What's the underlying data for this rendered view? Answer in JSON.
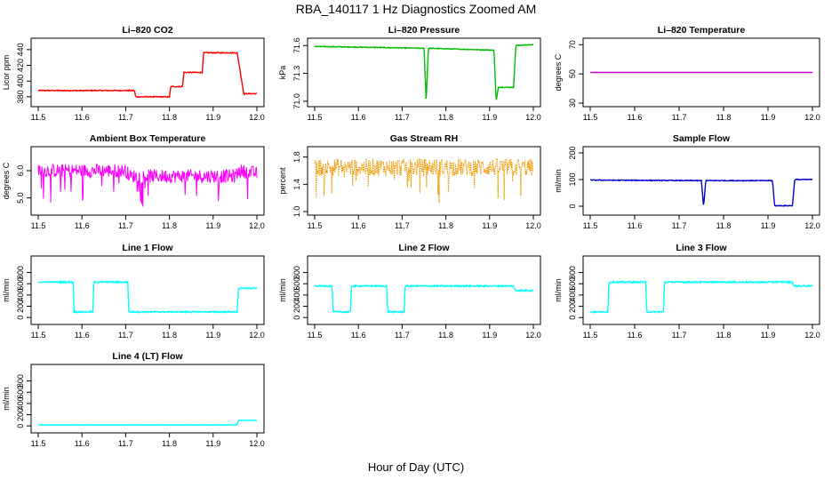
{
  "figure": {
    "title": "RBA_140117  1 Hz Diagnostics Zoomed AM",
    "xlabel": "Hour of Day (UTC)"
  },
  "chart_data": [
    {
      "id": "co2",
      "type": "line",
      "title": "Li–820 CO2",
      "ylabel": "Licor ppm",
      "color": "#ff0000",
      "xlim": [
        11.5,
        12.0
      ],
      "xticks": [
        "11.5",
        "11.6",
        "11.7",
        "11.8",
        "11.9",
        "12.0"
      ],
      "ylim": [
        372,
        450
      ],
      "yticks": [
        "380",
        "400",
        "420",
        "440"
      ],
      "noise": 0.6,
      "series": [
        [
          11.5,
          388
        ],
        [
          11.72,
          388
        ],
        [
          11.723,
          380
        ],
        [
          11.8,
          380
        ],
        [
          11.803,
          393
        ],
        [
          11.83,
          393
        ],
        [
          11.833,
          411
        ],
        [
          11.875,
          411
        ],
        [
          11.878,
          436
        ],
        [
          11.955,
          436
        ],
        [
          11.97,
          384
        ],
        [
          12.0,
          384
        ]
      ]
    },
    {
      "id": "pressure",
      "type": "line",
      "title": "Li–820 Pressure",
      "ylabel": "kPa",
      "color": "#00bb00",
      "xlim": [
        11.5,
        12.0
      ],
      "xticks": [
        "11.5",
        "11.6",
        "11.7",
        "11.8",
        "11.9",
        "12.0"
      ],
      "ylim": [
        70.98,
        71.64
      ],
      "yticks": [
        "71.0",
        "71.3",
        "71.6"
      ],
      "noise": 0.004,
      "series": [
        [
          11.5,
          71.59
        ],
        [
          11.75,
          71.57
        ],
        [
          11.755,
          71.0
        ],
        [
          11.76,
          71.57
        ],
        [
          11.91,
          71.55
        ],
        [
          11.915,
          71.0
        ],
        [
          11.92,
          71.15
        ],
        [
          11.955,
          71.15
        ],
        [
          11.96,
          71.6
        ],
        [
          12.0,
          71.61
        ]
      ]
    },
    {
      "id": "li820temp",
      "type": "line",
      "title": "Li–820 Temperature",
      "ylabel": "degrees C",
      "color": "#cc00cc",
      "xlim": [
        11.5,
        12.0
      ],
      "xticks": [
        "11.5",
        "11.6",
        "11.7",
        "11.8",
        "11.9",
        "12.0"
      ],
      "ylim": [
        30,
        72
      ],
      "yticks": [
        "30",
        "50",
        "70"
      ],
      "noise": 0,
      "series": [
        [
          11.5,
          51
        ],
        [
          12.0,
          51
        ]
      ]
    },
    {
      "id": "boxtemp",
      "type": "line",
      "title": "Ambient Box Temperature",
      "ylabel": "degrees C",
      "color": "#ff00ff",
      "xlim": [
        11.5,
        12.0
      ],
      "xticks": [
        "11.5",
        "11.6",
        "11.7",
        "11.8",
        "11.9",
        "12.0"
      ],
      "ylim": [
        4.5,
        6.75
      ],
      "yticks": [
        "5.0",
        "6.0"
      ],
      "noise": 0.25,
      "series": [
        [
          11.5,
          6.0
        ],
        [
          11.6,
          6.0
        ],
        [
          11.7,
          6.0
        ],
        [
          11.71,
          5.8
        ],
        [
          11.95,
          5.8
        ],
        [
          11.96,
          6.0
        ],
        [
          12.0,
          5.9
        ]
      ]
    },
    {
      "id": "rh",
      "type": "line",
      "title": "Gas Stream RH",
      "ylabel": "percent",
      "color": "#ee9900",
      "xlim": [
        11.5,
        12.0
      ],
      "xticks": [
        "11.5",
        "11.6",
        "11.7",
        "11.8",
        "11.9",
        "12.0"
      ],
      "ylim": [
        1.0,
        1.9
      ],
      "yticks": [
        "1.0",
        "1.4",
        "1.8"
      ],
      "noise": 0.13,
      "series": [
        [
          11.5,
          1.65
        ],
        [
          12.0,
          1.65
        ]
      ]
    },
    {
      "id": "sampleflow",
      "type": "line",
      "title": "Sample Flow",
      "ylabel": "ml/min",
      "color": "#0000cc",
      "xlim": [
        11.5,
        12.0
      ],
      "xticks": [
        "11.5",
        "11.6",
        "11.7",
        "11.8",
        "11.9",
        "12.0"
      ],
      "ylim": [
        -20,
        210
      ],
      "yticks": [
        "0",
        "100",
        "200"
      ],
      "noise": 1.5,
      "series": [
        [
          11.5,
          98
        ],
        [
          11.75,
          96
        ],
        [
          11.755,
          0
        ],
        [
          11.76,
          96
        ],
        [
          11.91,
          96
        ],
        [
          11.915,
          2
        ],
        [
          11.955,
          2
        ],
        [
          11.96,
          100
        ],
        [
          12.0,
          100
        ]
      ]
    },
    {
      "id": "line1",
      "type": "line",
      "title": "Line 1 Flow",
      "ylabel": "ml/min",
      "color": "#00ffff",
      "xlim": [
        11.5,
        12.0
      ],
      "xticks": [
        "11.5",
        "11.6",
        "11.7",
        "11.8",
        "11.9",
        "12.0"
      ],
      "ylim": [
        -60,
        1030
      ],
      "yticks": [
        "0",
        "200",
        "400",
        "600",
        "800"
      ],
      "noise": 12,
      "series": [
        [
          11.5,
          630
        ],
        [
          11.58,
          630
        ],
        [
          11.582,
          100
        ],
        [
          11.625,
          100
        ],
        [
          11.627,
          630
        ],
        [
          11.705,
          630
        ],
        [
          11.707,
          100
        ],
        [
          11.955,
          100
        ],
        [
          11.958,
          520
        ],
        [
          12.0,
          520
        ]
      ]
    },
    {
      "id": "line2",
      "type": "line",
      "title": "Line 2 Flow",
      "ylabel": "ml/min",
      "color": "#00ffff",
      "xlim": [
        11.5,
        12.0
      ],
      "xticks": [
        "11.5",
        "11.6",
        "11.7",
        "11.8",
        "11.9",
        "12.0"
      ],
      "ylim": [
        -60,
        1030
      ],
      "yticks": [
        "0",
        "200",
        "400",
        "600",
        "800"
      ],
      "noise": 12,
      "series": [
        [
          11.5,
          560
        ],
        [
          11.54,
          560
        ],
        [
          11.542,
          100
        ],
        [
          11.582,
          100
        ],
        [
          11.584,
          560
        ],
        [
          11.665,
          560
        ],
        [
          11.667,
          100
        ],
        [
          11.705,
          100
        ],
        [
          11.707,
          560
        ],
        [
          11.955,
          560
        ],
        [
          11.958,
          480
        ],
        [
          12.0,
          480
        ]
      ]
    },
    {
      "id": "line3",
      "type": "line",
      "title": "Line 3 Flow",
      "ylabel": "ml/min",
      "color": "#00ffff",
      "xlim": [
        11.5,
        12.0
      ],
      "xticks": [
        "11.5",
        "11.6",
        "11.7",
        "11.8",
        "11.9",
        "12.0"
      ],
      "ylim": [
        -60,
        1030
      ],
      "yticks": [
        "0",
        "200",
        "400",
        "600",
        "800"
      ],
      "noise": 12,
      "series": [
        [
          11.5,
          100
        ],
        [
          11.54,
          100
        ],
        [
          11.542,
          630
        ],
        [
          11.625,
          630
        ],
        [
          11.627,
          100
        ],
        [
          11.665,
          100
        ],
        [
          11.667,
          630
        ],
        [
          11.955,
          630
        ],
        [
          11.958,
          560
        ],
        [
          12.0,
          560
        ]
      ]
    },
    {
      "id": "line4",
      "type": "line",
      "title": "Line 4 (LT) Flow",
      "ylabel": "ml/min",
      "color": "#00ffff",
      "xlim": [
        11.5,
        12.0
      ],
      "xticks": [
        "11.5",
        "11.6",
        "11.7",
        "11.8",
        "11.9",
        "12.0"
      ],
      "ylim": [
        -60,
        1030
      ],
      "yticks": [
        "0",
        "200",
        "400",
        "600",
        "800"
      ],
      "noise": 3,
      "series": [
        [
          11.5,
          20
        ],
        [
          11.955,
          20
        ],
        [
          11.958,
          100
        ],
        [
          12.0,
          100
        ]
      ]
    }
  ]
}
